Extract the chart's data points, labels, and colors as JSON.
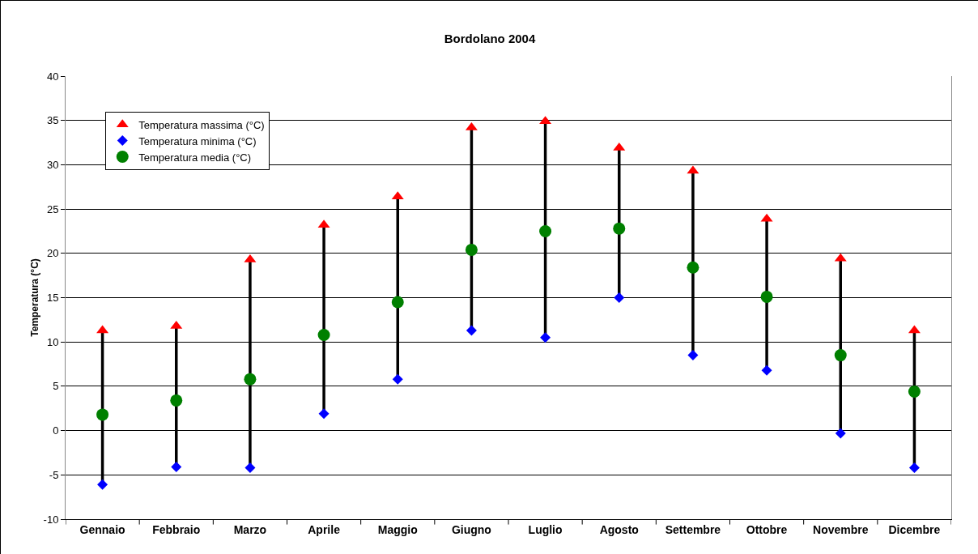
{
  "chart_data": {
    "type": "scatter",
    "title": "Bordolano 2004",
    "ylabel": "Temperatura (°C)",
    "categories": [
      "Gennaio",
      "Febbraio",
      "Marzo",
      "Aprile",
      "Maggio",
      "Giugno",
      "Luglio",
      "Agosto",
      "Settembre",
      "Ottobre",
      "Novembre",
      "Dicembre"
    ],
    "series": [
      {
        "name": "Temperatura massima (°C)",
        "color": "#ff0000",
        "marker": "triangle",
        "values": [
          11.3,
          11.8,
          19.3,
          23.2,
          26.4,
          34.2,
          34.9,
          31.9,
          29.3,
          23.9,
          19.4,
          11.3
        ]
      },
      {
        "name": "Temperatura minima (°C)",
        "color": "#0000ff",
        "marker": "diamond",
        "values": [
          -6.1,
          -4.1,
          -4.2,
          1.9,
          5.8,
          11.3,
          10.5,
          15.0,
          8.5,
          6.8,
          -0.3,
          -4.2
        ]
      },
      {
        "name": "Temperatura media (°C)",
        "color": "#008000",
        "marker": "circle",
        "values": [
          1.8,
          3.4,
          5.8,
          10.8,
          14.5,
          20.4,
          22.5,
          22.8,
          18.4,
          15.1,
          8.5,
          4.4
        ]
      }
    ],
    "ylim": [
      -10,
      40
    ],
    "yticks": [
      -10,
      -5,
      0,
      5,
      10,
      15,
      20,
      25,
      30,
      35,
      40
    ],
    "grid": "y",
    "legend": "top left"
  }
}
